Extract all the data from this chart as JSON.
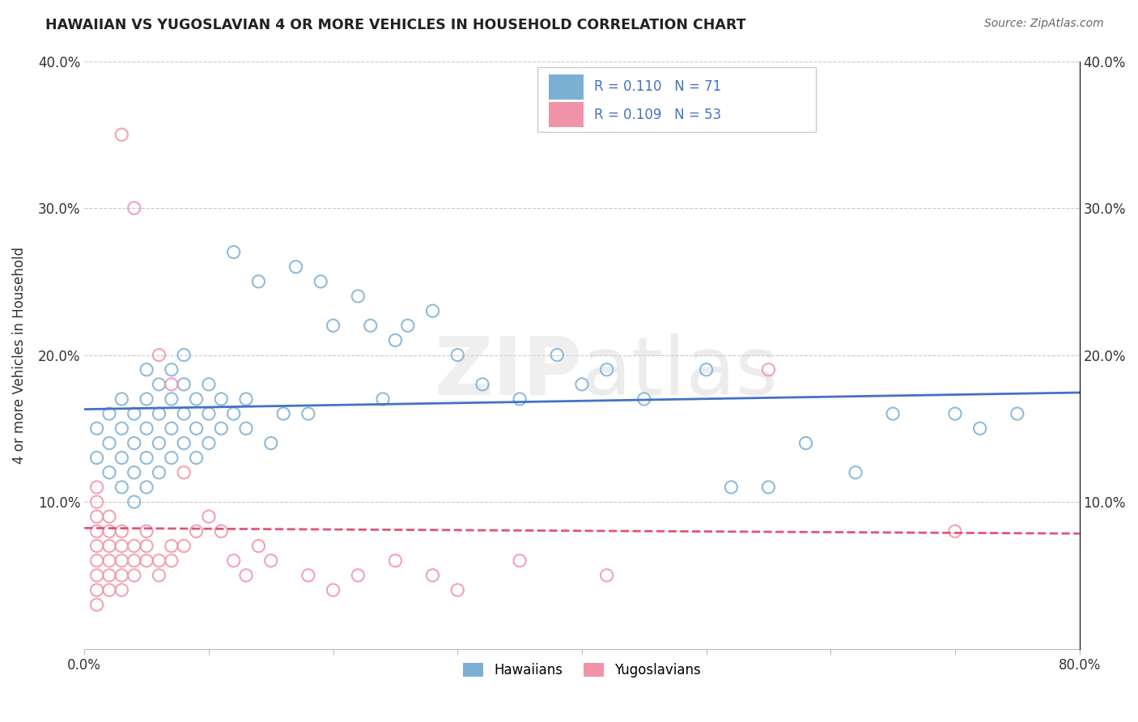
{
  "title": "HAWAIIAN VS YUGOSLAVIAN 4 OR MORE VEHICLES IN HOUSEHOLD CORRELATION CHART",
  "source": "Source: ZipAtlas.com",
  "ylabel": "4 or more Vehicles in Household",
  "xlim": [
    0.0,
    0.8
  ],
  "ylim": [
    0.0,
    0.4
  ],
  "hawaiian_color": "#7bafd4",
  "yugoslavian_color": "#f093a8",
  "hawaiian_line_color": "#4472c4",
  "yugoslavian_line_color": "#e05575",
  "watermark_color": "#cccccc",
  "r_hawaiian": 0.11,
  "n_hawaiian": 71,
  "r_yugoslavian": 0.109,
  "n_yugoslavian": 53,
  "hawaiian_scatter_x": [
    0.01,
    0.01,
    0.02,
    0.02,
    0.02,
    0.03,
    0.03,
    0.03,
    0.03,
    0.04,
    0.04,
    0.04,
    0.04,
    0.05,
    0.05,
    0.05,
    0.05,
    0.05,
    0.06,
    0.06,
    0.06,
    0.06,
    0.07,
    0.07,
    0.07,
    0.07,
    0.08,
    0.08,
    0.08,
    0.08,
    0.09,
    0.09,
    0.09,
    0.1,
    0.1,
    0.1,
    0.11,
    0.11,
    0.12,
    0.12,
    0.13,
    0.13,
    0.14,
    0.15,
    0.16,
    0.17,
    0.18,
    0.19,
    0.2,
    0.22,
    0.23,
    0.24,
    0.25,
    0.26,
    0.28,
    0.3,
    0.32,
    0.35,
    0.38,
    0.4,
    0.42,
    0.45,
    0.5,
    0.52,
    0.55,
    0.58,
    0.62,
    0.65,
    0.7,
    0.72,
    0.75
  ],
  "hawaiian_scatter_y": [
    0.13,
    0.15,
    0.12,
    0.14,
    0.16,
    0.11,
    0.13,
    0.15,
    0.17,
    0.1,
    0.12,
    0.14,
    0.16,
    0.11,
    0.13,
    0.15,
    0.17,
    0.19,
    0.12,
    0.14,
    0.16,
    0.18,
    0.13,
    0.15,
    0.17,
    0.19,
    0.14,
    0.16,
    0.18,
    0.2,
    0.13,
    0.15,
    0.17,
    0.14,
    0.16,
    0.18,
    0.15,
    0.17,
    0.16,
    0.27,
    0.15,
    0.17,
    0.25,
    0.14,
    0.16,
    0.26,
    0.16,
    0.25,
    0.22,
    0.24,
    0.22,
    0.17,
    0.21,
    0.22,
    0.23,
    0.2,
    0.18,
    0.17,
    0.2,
    0.18,
    0.19,
    0.17,
    0.19,
    0.11,
    0.11,
    0.14,
    0.12,
    0.16,
    0.16,
    0.15,
    0.16
  ],
  "yugoslavian_scatter_x": [
    0.01,
    0.01,
    0.01,
    0.01,
    0.01,
    0.01,
    0.01,
    0.01,
    0.01,
    0.02,
    0.02,
    0.02,
    0.02,
    0.02,
    0.02,
    0.03,
    0.03,
    0.03,
    0.03,
    0.03,
    0.03,
    0.04,
    0.04,
    0.04,
    0.04,
    0.05,
    0.05,
    0.05,
    0.06,
    0.06,
    0.06,
    0.07,
    0.07,
    0.07,
    0.08,
    0.08,
    0.09,
    0.1,
    0.11,
    0.12,
    0.13,
    0.14,
    0.15,
    0.18,
    0.2,
    0.22,
    0.25,
    0.28,
    0.3,
    0.35,
    0.42,
    0.55,
    0.7
  ],
  "yugoslavian_scatter_y": [
    0.03,
    0.04,
    0.05,
    0.06,
    0.07,
    0.08,
    0.09,
    0.1,
    0.11,
    0.04,
    0.05,
    0.06,
    0.07,
    0.08,
    0.09,
    0.04,
    0.05,
    0.06,
    0.07,
    0.08,
    0.35,
    0.05,
    0.06,
    0.07,
    0.3,
    0.06,
    0.07,
    0.08,
    0.05,
    0.06,
    0.2,
    0.06,
    0.07,
    0.18,
    0.07,
    0.12,
    0.08,
    0.09,
    0.08,
    0.06,
    0.05,
    0.07,
    0.06,
    0.05,
    0.04,
    0.05,
    0.06,
    0.05,
    0.04,
    0.06,
    0.05,
    0.19,
    0.08
  ]
}
